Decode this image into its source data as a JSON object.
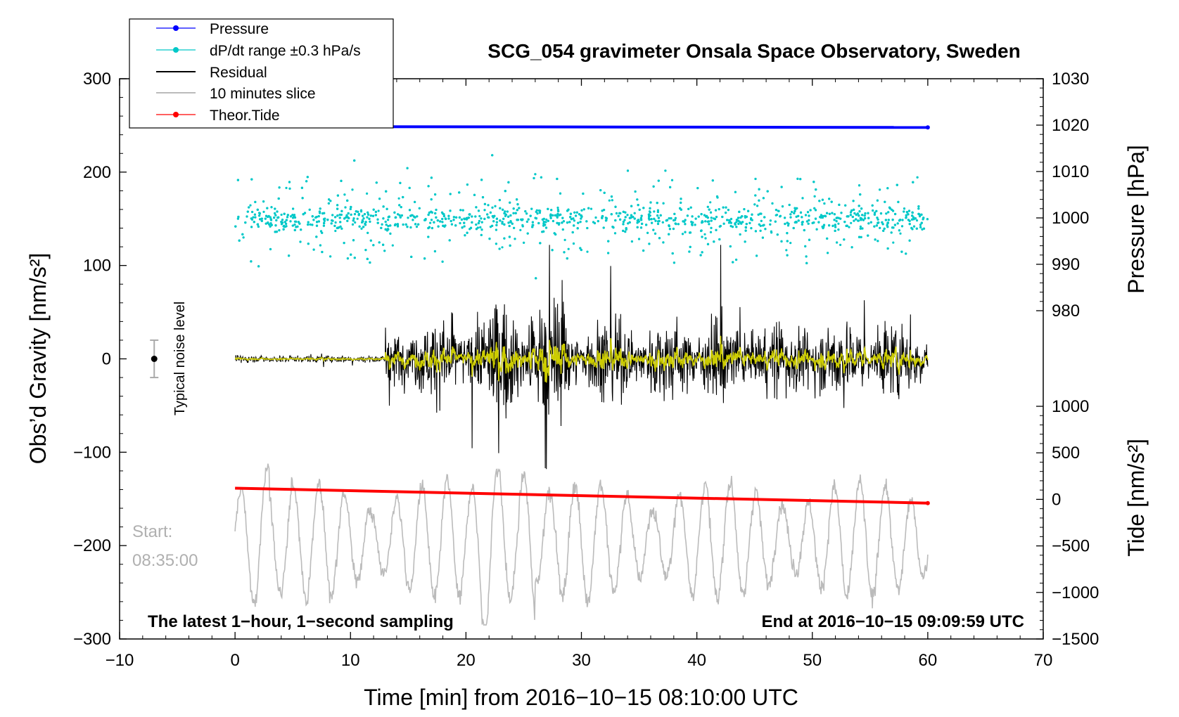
{
  "chart_data": {
    "type": "line",
    "title": "SCG_054 gravimeter Onsala Space Observatory, Sweden",
    "xlabel": "Time [min] from 2016−10−15 08:10:00 UTC",
    "ylabel_left": "Obs’d Gravity [nm/s²]",
    "ylabel_right_top": "Pressure [hPa]",
    "ylabel_right_bottom": "Tide [nm/s²]",
    "xlim": [
      -10,
      70
    ],
    "ylim_left": [
      -300,
      300
    ],
    "x_ticks": [
      "−10",
      "0",
      "10",
      "20",
      "30",
      "40",
      "50",
      "60",
      "70"
    ],
    "y_left_ticks": [
      "300",
      "200",
      "100",
      "0",
      "−100",
      "−200",
      "−300"
    ],
    "pressure_ticks": [
      "1030",
      "1020",
      "1010",
      "1000",
      "990",
      "980"
    ],
    "tide_ticks": [
      "1000",
      "500",
      "0",
      "−500",
      "−1000",
      "−1500"
    ],
    "pressure_range_hpa": [
      980,
      1030
    ],
    "tide_range": [
      -1500,
      1000
    ],
    "legend": [
      {
        "label": "Pressure",
        "color": "#0000ff",
        "style": "line-dot"
      },
      {
        "label": "dP/dt range ±0.3 hPa/s",
        "color": "#00c8c8",
        "style": "line-dot"
      },
      {
        "label": "Residual",
        "color": "#000000",
        "style": "line"
      },
      {
        "label": "10 minutes slice",
        "color": "#bbbbbb",
        "style": "line"
      },
      {
        "label": "Theor.Tide",
        "color": "#ff0000",
        "style": "line-dot"
      }
    ],
    "series": [
      {
        "name": "Pressure",
        "axis": "pressure_hpa",
        "x_range": [
          0,
          60
        ],
        "value_start": 1019.7,
        "value_end": 1019.5
      },
      {
        "name": "dP/dt range ±0.3 hPa/s",
        "axis": "left",
        "x_range": [
          0,
          60
        ],
        "center": 150,
        "spread": 40
      },
      {
        "name": "Residual",
        "axis": "left",
        "x_range": [
          0,
          60
        ],
        "quiet_amplitude": 5,
        "active_amplitude": 60,
        "onset_min": 13
      },
      {
        "name": "Theor.Tide",
        "axis": "tide",
        "x_range": [
          0,
          60
        ],
        "value_start": 120,
        "value_end": -40
      },
      {
        "name": "10 minutes slice",
        "axis": "left",
        "x_range": [
          0,
          60
        ],
        "center": -195,
        "amplitude": 55
      }
    ],
    "annotations": {
      "start_label": "Start:",
      "start_time": "08:35:00",
      "bottom_left": "The latest 1−hour, 1−second sampling",
      "bottom_right": "End at 2016−10−15 09:09:59 UTC",
      "noise": "Typical noise level"
    },
    "noise_bar": {
      "x": -7,
      "center": 0,
      "half_range": 20
    }
  },
  "colors": {
    "pressure": "#0000ff",
    "dpdt": "#00c8c8",
    "residual": "#000000",
    "slice": "#bbbbbb",
    "tide": "#ff0000",
    "filtered": "#cccc00"
  }
}
